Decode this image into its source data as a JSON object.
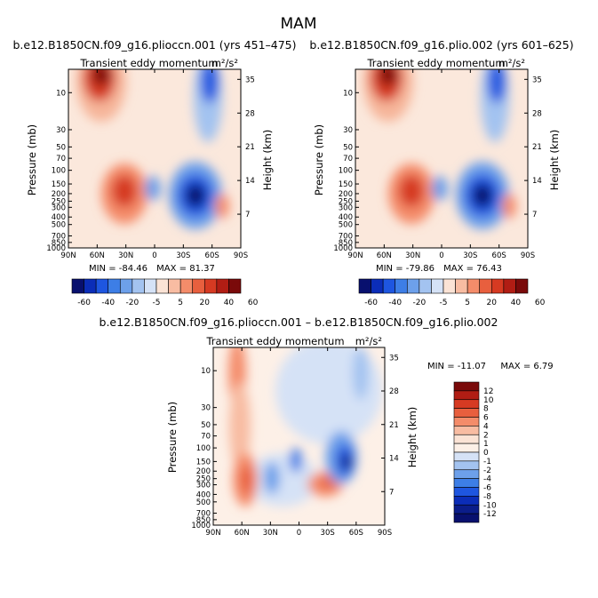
{
  "figure": {
    "title": "MAM",
    "x_ticks": [
      "90N",
      "60N",
      "30N",
      "0",
      "30S",
      "60S",
      "90S"
    ],
    "pressure_ticks": [
      "10",
      "30",
      "50",
      "70",
      "100",
      "150",
      "200",
      "250",
      "300",
      "400",
      "500",
      "700",
      "850",
      "1000"
    ],
    "height_ticks": [
      "35",
      "28",
      "21",
      "14",
      "7"
    ],
    "ylabel_left": "Pressure (mb)",
    "ylabel_right": "Height (km)",
    "colors": {
      "top_scale": [
        "#08106e",
        "#0b2db8",
        "#1e56e0",
        "#3d7ee6",
        "#6da0ea",
        "#a3c3f0",
        "#d5e2f6",
        "#fbe3d5",
        "#f8bca2",
        "#f48c6a",
        "#e85f3e",
        "#d63a22",
        "#b11d14",
        "#7a0a0a"
      ],
      "bottom_scale": [
        "#08106e",
        "#0b2db8",
        "#1e56e0",
        "#3d7ee6",
        "#6da0ea",
        "#a3c3f0",
        "#d5e2f6",
        "#fbe3d5",
        "#f8bca2",
        "#f48c6a",
        "#e85f3e",
        "#d63a22",
        "#b11d14",
        "#7a0a0a"
      ]
    }
  },
  "chart_data": [
    {
      "type": "heatmap",
      "title": "b.e12.B1850CN.f09_g16.pliocсn.001 (yrs 451–475)",
      "subtitle": "Transient eddy momentum",
      "units": "m²/s²",
      "min_label": "MIN = -84.46",
      "max_label": "MAX = 81.37",
      "xlim": [
        "90N",
        "90S"
      ],
      "ylim_mb": [
        1000,
        5
      ],
      "colorbar_ticks": [
        "-60",
        "-40",
        "-20",
        "-5",
        "5",
        "20",
        "40",
        "60"
      ],
      "features": [
        {
          "lat": 60,
          "p": 5,
          "value": 80
        },
        {
          "lat": 25,
          "p": 200,
          "value": 55
        },
        {
          "lat": -5,
          "p": 180,
          "value": -15
        },
        {
          "lat": -40,
          "p": 220,
          "value": -80
        },
        {
          "lat": -58,
          "p": 5,
          "value": -50
        },
        {
          "lat": -72,
          "p": 280,
          "value": 25
        }
      ]
    },
    {
      "type": "heatmap",
      "title": "b.e12.B1850CN.f09_g16.plio.002 (yrs 601–625)",
      "subtitle": "Transient eddy momentum",
      "units": "m²/s²",
      "min_label": "MIN = -79.86",
      "max_label": "MAX = 76.43",
      "xlim": [
        "90N",
        "90S"
      ],
      "ylim_mb": [
        1000,
        5
      ],
      "colorbar_ticks": [
        "-60",
        "-40",
        "-20",
        "-5",
        "5",
        "20",
        "40",
        "60"
      ],
      "features": [
        {
          "lat": 60,
          "p": 5,
          "value": 76
        },
        {
          "lat": 25,
          "p": 200,
          "value": 52
        },
        {
          "lat": -5,
          "p": 180,
          "value": -15
        },
        {
          "lat": -40,
          "p": 220,
          "value": -78
        },
        {
          "lat": -58,
          "p": 5,
          "value": -48
        },
        {
          "lat": -72,
          "p": 280,
          "value": 24
        }
      ]
    },
    {
      "type": "heatmap",
      "title": "b.e12.B1850CN.f09_g16.pliocсn.001 – b.e12.B1850CN.f09_g16.plio.002",
      "subtitle": "Transient eddy momentum",
      "units": "m²/s²",
      "min_label": "MIN = -11.07",
      "max_label": "MAX = 6.79",
      "xlim": [
        "90N",
        "90S"
      ],
      "ylim_mb": [
        1000,
        5
      ],
      "colorbar_ticks": [
        "12",
        "10",
        "8",
        "6",
        "4",
        "2",
        "1",
        "0",
        "-1",
        "-2",
        "-4",
        "-6",
        "-8",
        "-10",
        "-12"
      ],
      "features": [
        {
          "lat": 65,
          "p": 5,
          "value": 5
        },
        {
          "lat": 48,
          "p": 60,
          "value": 4
        },
        {
          "lat": 45,
          "p": 230,
          "value": 5
        },
        {
          "lat": 20,
          "p": 250,
          "value": -5
        },
        {
          "lat": 2,
          "p": 160,
          "value": -4
        },
        {
          "lat": -30,
          "p": 250,
          "value": 6
        },
        {
          "lat": -38,
          "p": 150,
          "value": -11
        },
        {
          "lat": -50,
          "p": 20,
          "value": -3
        }
      ]
    }
  ]
}
